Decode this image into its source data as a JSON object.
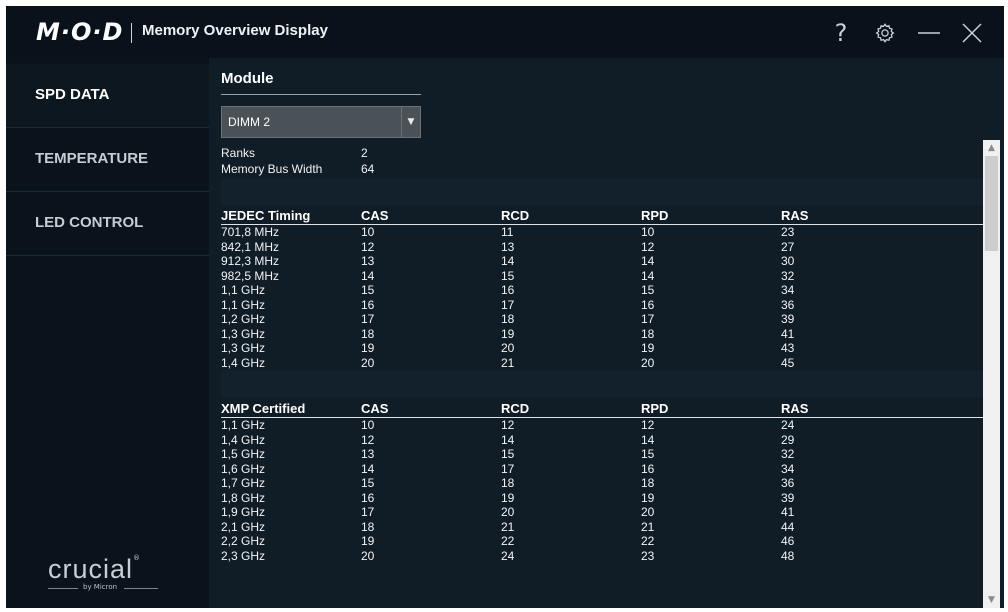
{
  "window": {
    "logo": "M·O·D",
    "title": "Memory Overview Display",
    "icons": {
      "help": "help-icon",
      "settings": "gear-icon",
      "minimize": "minimize-icon",
      "close": "close-icon"
    }
  },
  "sidebar": {
    "items": [
      {
        "label": "SPD DATA",
        "active": true
      },
      {
        "label": "TEMPERATURE",
        "active": false
      },
      {
        "label": "LED CONTROL",
        "active": false
      }
    ],
    "brand": {
      "name": "crucial",
      "tm": "®",
      "sub": "by Micron"
    }
  },
  "module": {
    "label": "Module",
    "selected": "DIMM 2"
  },
  "info": {
    "ranks_label": "Ranks",
    "ranks_value": "2",
    "bus_width_label": "Memory Bus Width",
    "bus_width_value": "64"
  },
  "jedec": {
    "headers": [
      "JEDEC Timing",
      "CAS",
      "RCD",
      "RPD",
      "RAS"
    ],
    "rows": [
      [
        "701,8 MHz",
        "10",
        "11",
        "10",
        "23"
      ],
      [
        "842,1 MHz",
        "12",
        "13",
        "12",
        "27"
      ],
      [
        "912,3 MHz",
        "13",
        "14",
        "14",
        "30"
      ],
      [
        "982,5 MHz",
        "14",
        "15",
        "14",
        "32"
      ],
      [
        "1,1 GHz",
        "15",
        "16",
        "15",
        "34"
      ],
      [
        "1,1 GHz",
        "16",
        "17",
        "16",
        "36"
      ],
      [
        "1,2 GHz",
        "17",
        "18",
        "17",
        "39"
      ],
      [
        "1,3 GHz",
        "18",
        "19",
        "18",
        "41"
      ],
      [
        "1,3 GHz",
        "19",
        "20",
        "19",
        "43"
      ],
      [
        "1,4 GHz",
        "20",
        "21",
        "20",
        "45"
      ]
    ]
  },
  "xmp": {
    "headers": [
      "XMP Certified",
      "CAS",
      "RCD",
      "RPD",
      "RAS"
    ],
    "rows": [
      [
        "1,1 GHz",
        "10",
        "12",
        "12",
        "24"
      ],
      [
        "1,4 GHz",
        "12",
        "14",
        "14",
        "29"
      ],
      [
        "1,5 GHz",
        "13",
        "15",
        "15",
        "32"
      ],
      [
        "1,6 GHz",
        "14",
        "17",
        "16",
        "34"
      ],
      [
        "1,7 GHz",
        "15",
        "18",
        "18",
        "36"
      ],
      [
        "1,8 GHz",
        "16",
        "19",
        "19",
        "39"
      ],
      [
        "1,9 GHz",
        "17",
        "20",
        "20",
        "41"
      ],
      [
        "2,1 GHz",
        "18",
        "21",
        "21",
        "44"
      ],
      [
        "2,2 GHz",
        "19",
        "22",
        "22",
        "46"
      ],
      [
        "2,3 GHz",
        "20",
        "24",
        "23",
        "48"
      ]
    ]
  },
  "colors": {
    "background": "#101c26",
    "sidebar": "#0a131b",
    "text": "#f2f4f6"
  }
}
